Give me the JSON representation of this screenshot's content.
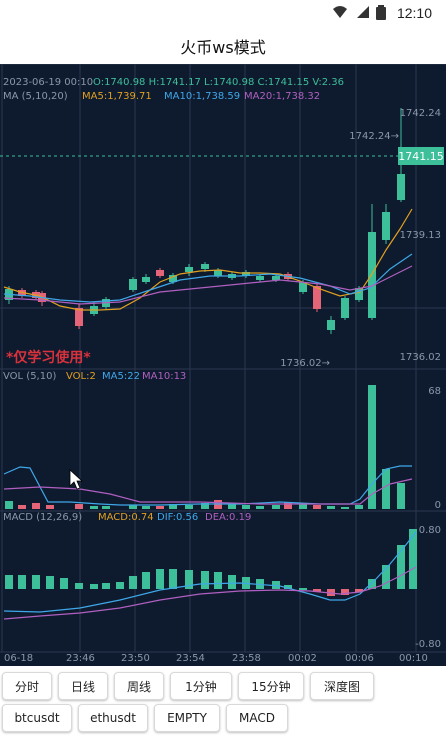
{
  "status_bar": {
    "time": "12:10",
    "icons": [
      "wifi-icon",
      "signal-icon",
      "battery-icon"
    ]
  },
  "app_bar": {
    "title": "火币ws模式"
  },
  "chart": {
    "header": {
      "datetime": "2023-06-19 00:10",
      "ohlc": "O:1740.98  H:1741.17  L:1740.98  C:1741.15  V:2.36"
    },
    "main_ma": {
      "label": "MA (5,10,20)",
      "ma5": "MA5:1,739.71",
      "ma10": "MA10:1,738.59",
      "ma20": "MA20:1,738.32"
    },
    "max_marker": "1742.24→",
    "min_marker": "1736.02→",
    "price_axis": {
      "top": "1742.24",
      "mid": "1739.13",
      "bottom": "1736.02"
    },
    "current_price": "1741.15",
    "watermark": "*仅学习使用*",
    "vol": {
      "label": "VOL (5,10)",
      "vol": "VOL:2",
      "ma5": "MA5:22",
      "ma10": "MA10:13",
      "axis_top": "68",
      "axis_bottom": "0"
    },
    "macd": {
      "label": "MACD (12,26,9)",
      "macd": "MACD:0.74",
      "dif": "DIF:0.56",
      "dea": "DEA:0.19",
      "axis_top": "0.80",
      "axis_bottom": "-0.80"
    },
    "time_axis": [
      "06-18",
      "23:46",
      "23:50",
      "23:54",
      "23:58",
      "00:02",
      "00:06",
      "00:10"
    ],
    "colors": {
      "background": "#0e1a2e",
      "grid": "#2a3850",
      "up": "#3dbf9a",
      "down": "#e46478",
      "ma5": "#e0a020",
      "ma10": "#3ea8e8",
      "ma20": "#b060c0",
      "text": "#8a97aa",
      "watermark": "#d8323c"
    }
  },
  "buttons": {
    "row1": [
      "分时",
      "日线",
      "周线",
      "1分钟",
      "15分钟",
      "深度图"
    ],
    "row2": [
      "btcusdt",
      "ethusdt",
      "EMPTY",
      "MACD"
    ]
  }
}
